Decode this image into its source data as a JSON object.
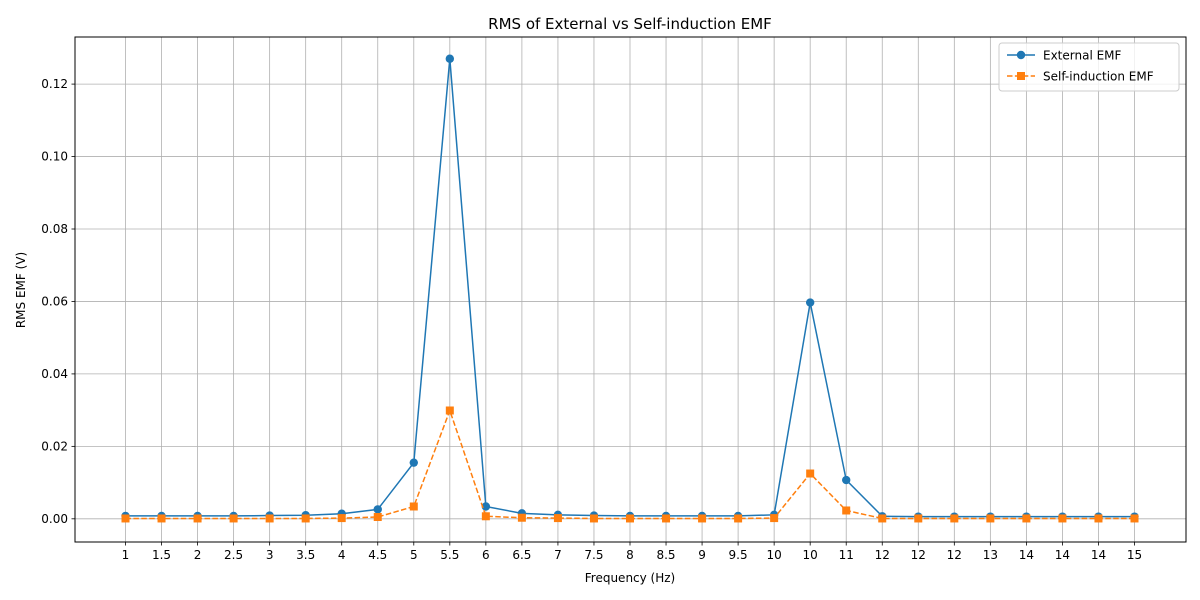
{
  "chart_data": {
    "type": "line",
    "title": "RMS of External vs Self-induction EMF",
    "xlabel": "Frequency (Hz)",
    "ylabel": "RMS EMF (V)",
    "categories": [
      "1",
      "1.5",
      "2",
      "2.5",
      "3",
      "3.5",
      "4",
      "4.5",
      "5",
      "5.5",
      "6",
      "6.5",
      "7",
      "7.5",
      "8",
      "8.5",
      "9",
      "9.5",
      "10",
      "10",
      "11",
      "12",
      "12",
      "12",
      "13",
      "14",
      "14",
      "14",
      "15"
    ],
    "ylim": [
      -0.0064,
      0.133
    ],
    "yticks": [
      "0.00",
      "0.02",
      "0.04",
      "0.06",
      "0.08",
      "0.10",
      "0.12"
    ],
    "ytick_values": [
      0,
      0.02,
      0.04,
      0.06,
      0.08,
      0.1,
      0.12
    ],
    "grid": true,
    "legend_position": "top-right",
    "series": [
      {
        "name": "External EMF",
        "color": "#1f77b4",
        "marker": "circle",
        "linestyle": "solid",
        "values": [
          0.0008,
          0.0008,
          0.0008,
          0.0008,
          0.0009,
          0.001,
          0.0014,
          0.0026,
          0.0155,
          0.127,
          0.0034,
          0.0015,
          0.0011,
          0.0009,
          0.0008,
          0.0008,
          0.0008,
          0.0008,
          0.0011,
          0.0597,
          0.0107,
          0.0007,
          0.0006,
          0.0006,
          0.0006,
          0.0006,
          0.0006,
          0.0006,
          0.0006
        ]
      },
      {
        "name": "Self-induction EMF",
        "color": "#ff7f0e",
        "marker": "square",
        "linestyle": "dashed",
        "values": [
          0.0001,
          0.0001,
          0.0001,
          0.0001,
          0.0001,
          0.0001,
          0.0002,
          0.0005,
          0.0034,
          0.0299,
          0.0007,
          0.0003,
          0.0002,
          0.0001,
          0.0001,
          0.0001,
          0.0001,
          0.0001,
          0.0002,
          0.0125,
          0.0023,
          0.0001,
          0.0001,
          0.0001,
          0.0001,
          0.0001,
          0.0001,
          0.0001,
          0.0001
        ]
      }
    ]
  }
}
